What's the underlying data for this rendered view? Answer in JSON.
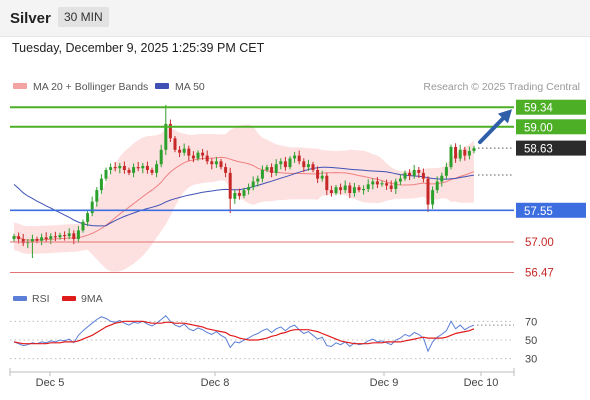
{
  "header": {
    "title": "Silver",
    "timeframe": "30 MIN",
    "datetime": "Tuesday, December 9, 2025 1:25:39 PM CET"
  },
  "legend": {
    "ma20": "MA 20 + Bollinger Bands",
    "ma50": "MA 50",
    "credit": "Research © 2025 Trading Central"
  },
  "rsi_legend": {
    "rsi": "RSI",
    "ma9": "9MA"
  },
  "colors": {
    "up": "#2ca02c",
    "down": "#c62828",
    "band_fill": "#fde0e0",
    "ma20": "#f08080",
    "ma50": "#3f51b5",
    "resistance": "#4caf26",
    "support": "#3d6ee0",
    "target": "#e57373",
    "arrow": "#2f5fa8",
    "rsi": "#5b7fd6",
    "rsi_ma": "#e01b1b"
  },
  "chart_data": [
    {
      "type": "candlestick",
      "ylim": [
        56.2,
        59.5
      ],
      "x_labels": [
        "Dec 5",
        "Dec 8",
        "Dec 9",
        "Dec 10"
      ],
      "levels": [
        {
          "value": 59.34,
          "label": "59.34",
          "kind": "resistance"
        },
        {
          "value": 59.0,
          "label": "59.00",
          "kind": "resistance"
        },
        {
          "value": 58.63,
          "label": "58.63",
          "kind": "last"
        },
        {
          "value": 57.55,
          "label": "57.55",
          "kind": "support"
        },
        {
          "value": 57.0,
          "label": "57.00",
          "kind": "target"
        },
        {
          "value": 56.47,
          "label": "56.47",
          "kind": "target"
        }
      ],
      "close": [
        57.1,
        57.05,
        56.98,
        57.0,
        57.05,
        57.02,
        57.08,
        57.05,
        57.1,
        57.08,
        57.12,
        57.1,
        57.15,
        57.05,
        57.2,
        57.35,
        57.5,
        57.7,
        57.9,
        58.1,
        58.25,
        58.3,
        58.28,
        58.32,
        58.25,
        58.2,
        58.3,
        58.28,
        58.32,
        58.25,
        58.2,
        58.35,
        58.6,
        59.05,
        58.8,
        58.6,
        58.55,
        58.62,
        58.5,
        58.45,
        58.55,
        58.5,
        58.4,
        58.35,
        58.4,
        58.3,
        58.2,
        57.75,
        57.85,
        57.8,
        57.9,
        57.95,
        58.05,
        58.1,
        58.25,
        58.3,
        58.2,
        58.35,
        58.4,
        58.3,
        58.45,
        58.5,
        58.4,
        58.3,
        58.35,
        58.25,
        58.1,
        58.15,
        57.9,
        57.85,
        57.95,
        57.9,
        57.98,
        57.85,
        57.95,
        57.9,
        57.92,
        58.0,
        58.05,
        58.0,
        58.02,
        57.98,
        57.92,
        58.05,
        58.1,
        58.2,
        58.15,
        58.25,
        58.2,
        58.1,
        57.65,
        57.9,
        58.05,
        58.15,
        58.3,
        58.65,
        58.45,
        58.6,
        58.5,
        58.58,
        58.63
      ]
    },
    {
      "type": "line",
      "title": "RSI",
      "ylim": [
        20,
        80
      ],
      "y_ticks": [
        70,
        50,
        30
      ],
      "rsi": [
        48,
        46,
        44,
        45,
        47,
        46,
        48,
        47,
        49,
        48,
        50,
        49,
        51,
        47,
        55,
        60,
        64,
        68,
        72,
        75,
        73,
        70,
        69,
        71,
        68,
        66,
        69,
        68,
        70,
        67,
        65,
        68,
        72,
        76,
        70,
        66,
        64,
        67,
        62,
        60,
        63,
        61,
        58,
        56,
        59,
        55,
        52,
        42,
        48,
        47,
        50,
        52,
        55,
        57,
        60,
        62,
        58,
        62,
        64,
        60,
        64,
        66,
        61,
        57,
        59,
        55,
        51,
        53,
        44,
        43,
        47,
        45,
        48,
        43,
        47,
        45,
        46,
        49,
        51,
        48,
        49,
        47,
        45,
        50,
        52,
        56,
        54,
        58,
        56,
        52,
        38,
        48,
        53,
        56,
        60,
        70,
        62,
        66,
        61,
        64,
        66
      ],
      "rsi_ma": [
        48,
        47,
        46,
        46,
        46,
        46,
        46,
        46,
        47,
        47,
        47,
        48,
        48,
        48,
        49,
        51,
        53,
        55,
        58,
        61,
        64,
        66,
        68,
        69,
        70,
        70,
        70,
        70,
        70,
        69,
        68,
        68,
        68,
        69,
        69,
        68,
        68,
        68,
        67,
        66,
        65,
        64,
        62,
        61,
        60,
        59,
        58,
        55,
        54,
        52,
        51,
        50,
        50,
        50,
        51,
        52,
        54,
        55,
        57,
        58,
        60,
        61,
        61,
        61,
        61,
        60,
        59,
        57,
        55,
        53,
        51,
        49,
        48,
        47,
        46,
        46,
        46,
        46,
        47,
        47,
        47,
        48,
        48,
        48,
        48,
        49,
        50,
        51,
        52,
        53,
        52,
        52,
        52,
        52,
        53,
        55,
        57,
        58,
        59,
        60,
        62
      ]
    }
  ]
}
